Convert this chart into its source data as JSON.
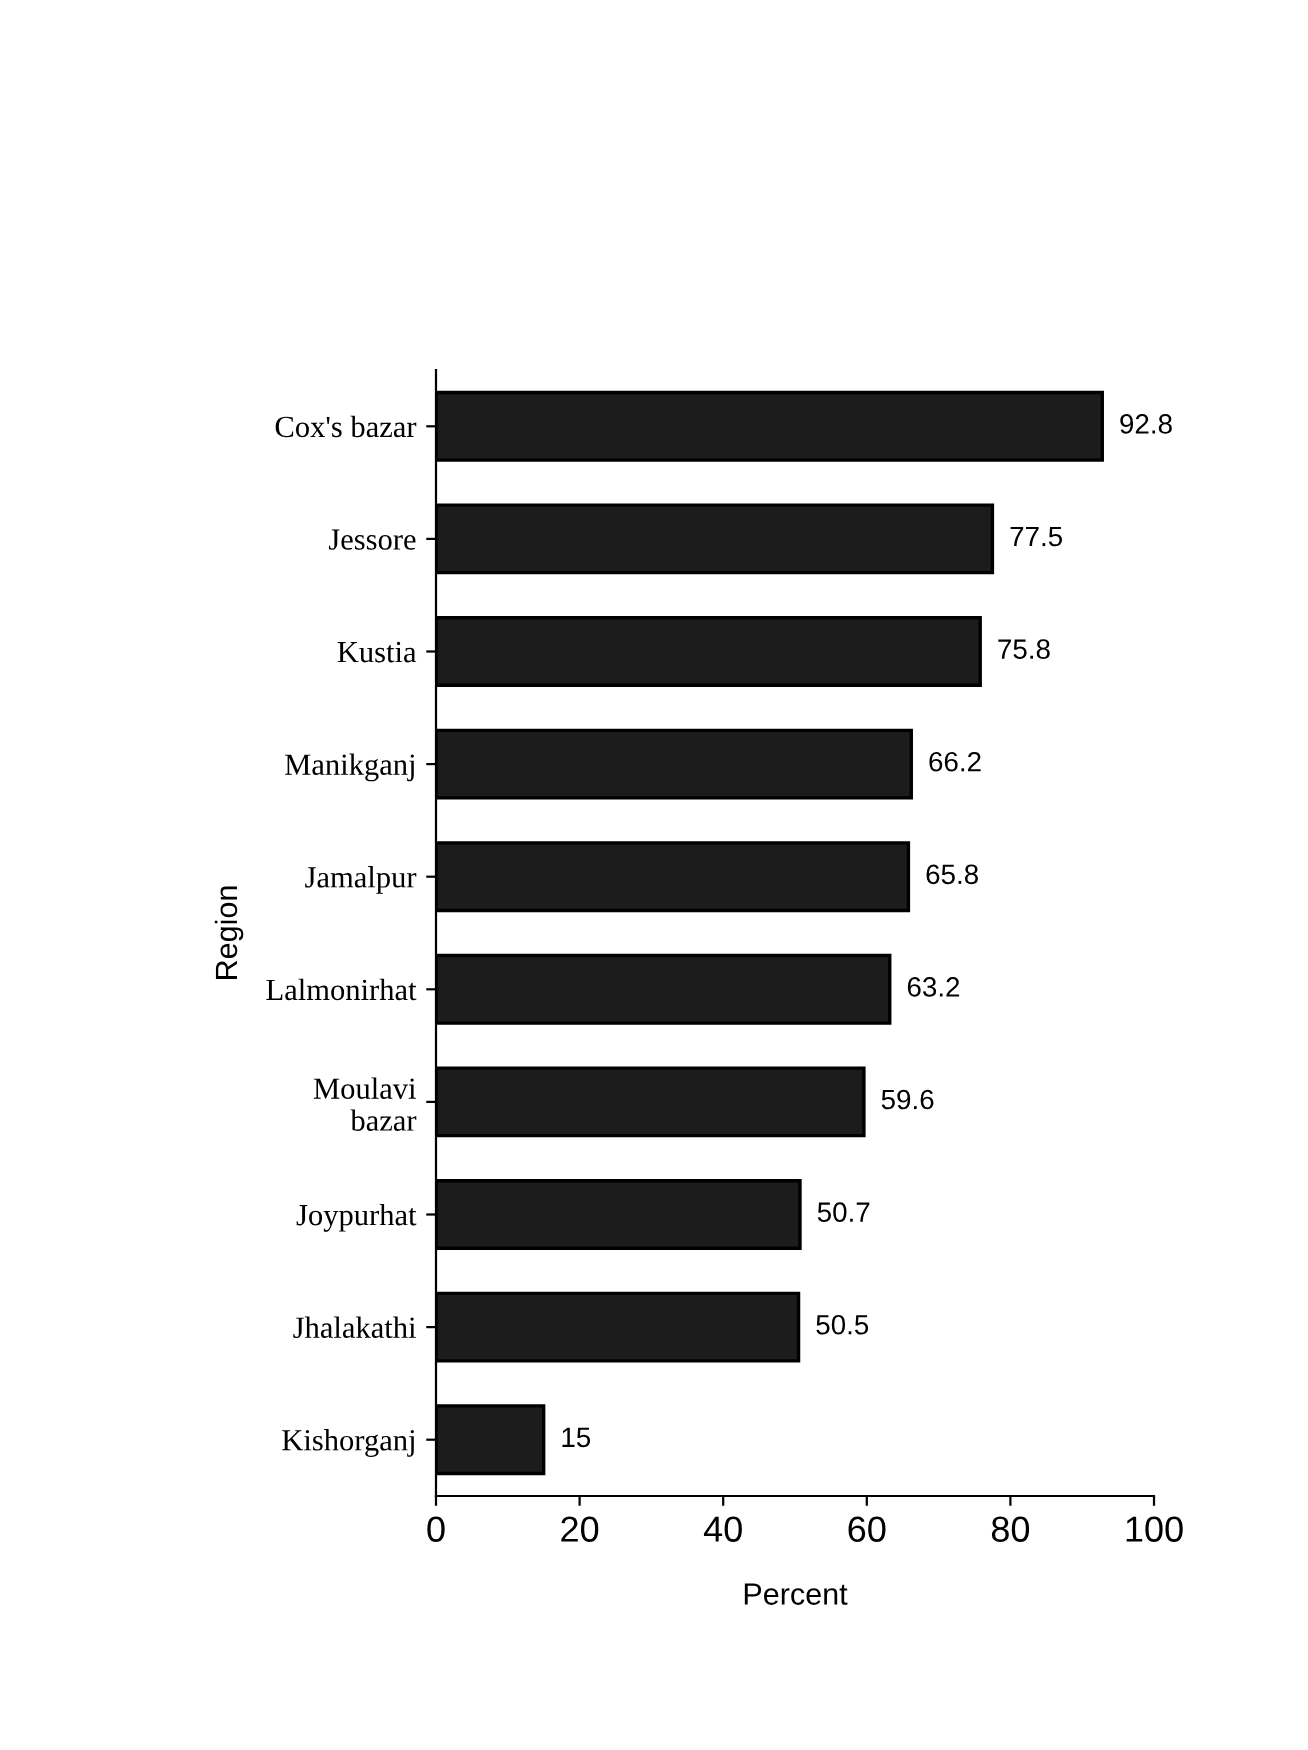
{
  "chart_data": {
    "type": "bar",
    "orientation": "horizontal",
    "xlabel": "Percent",
    "ylabel": "Region",
    "categories": [
      "Cox's bazar",
      "Jessore",
      "Kustia",
      "Manikganj",
      "Jamalpur",
      "Lalmonirhat",
      "Moulavi\nbazar",
      "Joypurhat",
      "Jhalakathi",
      "Kishorganj"
    ],
    "values": [
      92.8,
      77.5,
      75.8,
      66.2,
      65.8,
      63.2,
      59.6,
      50.7,
      50.5,
      15
    ],
    "color": "#1c1c1c",
    "data_labels": true,
    "xlim": [
      0,
      100
    ],
    "xticks": [
      0,
      20,
      40,
      60,
      80,
      100
    ],
    "grid": false,
    "legend": false
  }
}
